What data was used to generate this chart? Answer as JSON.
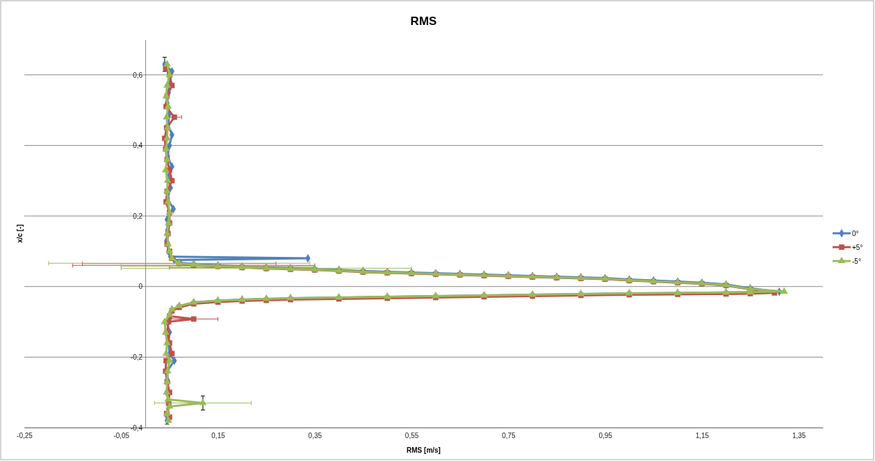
{
  "chart_data": {
    "type": "line",
    "title": "RMS",
    "xlabel": "RMS [m/s]",
    "ylabel": "x/c [-]",
    "xlim": [
      -0.25,
      1.4
    ],
    "ylim": [
      -0.4,
      0.7
    ],
    "xticks": [
      {
        "value": -0.25,
        "label": "-0,25"
      },
      {
        "value": -0.05,
        "label": "-0,05"
      },
      {
        "value": 0.15,
        "label": "0,15"
      },
      {
        "value": 0.35,
        "label": "0,35"
      },
      {
        "value": 0.55,
        "label": "0,55"
      },
      {
        "value": 0.75,
        "label": "0,75"
      },
      {
        "value": 0.95,
        "label": "0,95"
      },
      {
        "value": 1.15,
        "label": "1,15"
      },
      {
        "value": 1.35,
        "label": "1,35"
      }
    ],
    "yticks": [
      {
        "value": -0.4,
        "label": "-0,4"
      },
      {
        "value": -0.2,
        "label": "-0,2"
      },
      0,
      {
        "value": 0.2,
        "label": "0,2"
      },
      {
        "value": 0.4,
        "label": "0,4"
      },
      {
        "value": 0.6,
        "label": "0,6"
      }
    ],
    "grid": "y",
    "legend": "right",
    "series": [
      {
        "name": "0°",
        "color": "#4f81bd",
        "marker": "diamond",
        "x": [
          0.04,
          0.055,
          0.05,
          0.048,
          0.045,
          0.05,
          0.047,
          0.055,
          0.05,
          0.046,
          0.055,
          0.047,
          0.052,
          0.046,
          0.058,
          0.045,
          0.046,
          0.044,
          0.048,
          0.052,
          0.336,
          0.06,
          0.07,
          0.1,
          0.15,
          0.2,
          0.25,
          0.3,
          0.35,
          0.4,
          0.45,
          0.5,
          0.55,
          0.6,
          0.65,
          0.7,
          0.75,
          0.8,
          0.85,
          0.9,
          0.95,
          1.0,
          1.05,
          1.1,
          1.15,
          1.2,
          1.25,
          1.31,
          1.25,
          1.2,
          1.1,
          1.0,
          0.9,
          0.8,
          0.7,
          0.6,
          0.5,
          0.4,
          0.3,
          0.25,
          0.2,
          0.15,
          0.1,
          0.07,
          0.055,
          0.05,
          0.045,
          0.05,
          0.048,
          0.05,
          0.06,
          0.045,
          0.047,
          0.044,
          0.05,
          0.046,
          0.045
        ],
        "values": [
          0.63,
          0.61,
          0.58,
          0.55,
          0.52,
          0.49,
          0.46,
          0.43,
          0.4,
          0.37,
          0.34,
          0.31,
          0.28,
          0.25,
          0.22,
          0.19,
          0.16,
          0.13,
          0.1,
          0.085,
          0.08,
          0.075,
          0.068,
          0.064,
          0.06,
          0.057,
          0.054,
          0.052,
          0.05,
          0.047,
          0.044,
          0.042,
          0.04,
          0.038,
          0.036,
          0.034,
          0.032,
          0.03,
          0.028,
          0.026,
          0.024,
          0.02,
          0.017,
          0.014,
          0.011,
          0.006,
          -0.005,
          -0.015,
          -0.016,
          -0.017,
          -0.018,
          -0.019,
          -0.021,
          -0.023,
          -0.025,
          -0.027,
          -0.029,
          -0.031,
          -0.033,
          -0.035,
          -0.037,
          -0.04,
          -0.045,
          -0.055,
          -0.065,
          -0.08,
          -0.1,
          -0.13,
          -0.16,
          -0.19,
          -0.21,
          -0.24,
          -0.27,
          -0.3,
          -0.33,
          -0.36,
          -0.38
        ],
        "errors": [
          0.02,
          null,
          null,
          null,
          null,
          null,
          null,
          null,
          null,
          null,
          null,
          null,
          null,
          null,
          null,
          null,
          null,
          null,
          null,
          null,
          null,
          null,
          null,
          null,
          null,
          null,
          null,
          null,
          null,
          null,
          null,
          null,
          null,
          null,
          null,
          null,
          null,
          null,
          null,
          null,
          null,
          null,
          null,
          null,
          null,
          null,
          null,
          null,
          null,
          null,
          null,
          null,
          null,
          null,
          null,
          null,
          null,
          null,
          null,
          null,
          null,
          null,
          null,
          null,
          null,
          null,
          null,
          null,
          null,
          null,
          null,
          null,
          null,
          null,
          null,
          null,
          0.01
        ]
      },
      {
        "name": "+5°",
        "color": "#c0504d",
        "marker": "square",
        "x": [
          0.042,
          0.05,
          0.055,
          0.045,
          0.043,
          0.06,
          0.044,
          0.04,
          0.042,
          0.045,
          0.05,
          0.055,
          0.045,
          0.043,
          0.05,
          0.05,
          0.047,
          0.045,
          0.05,
          0.055,
          0.07,
          0.1,
          0.15,
          0.2,
          0.25,
          0.3,
          0.35,
          0.4,
          0.45,
          0.5,
          0.55,
          0.6,
          0.65,
          0.7,
          0.75,
          0.8,
          0.85,
          0.9,
          0.95,
          1.0,
          1.05,
          1.1,
          1.15,
          1.2,
          1.25,
          1.3,
          1.25,
          1.2,
          1.1,
          1.0,
          0.9,
          0.8,
          0.7,
          0.6,
          0.5,
          0.4,
          0.3,
          0.25,
          0.2,
          0.15,
          0.1,
          0.07,
          0.055,
          0.05,
          0.1,
          0.048,
          0.045,
          0.05,
          0.055,
          0.043,
          0.042,
          0.045,
          0.05,
          0.048,
          0.044,
          0.05
        ],
        "values": [
          0.62,
          0.6,
          0.57,
          0.54,
          0.51,
          0.48,
          0.45,
          0.42,
          0.39,
          0.36,
          0.33,
          0.3,
          0.27,
          0.24,
          0.21,
          0.18,
          0.15,
          0.12,
          0.1,
          0.08,
          0.065,
          0.06,
          0.057,
          0.054,
          0.051,
          0.049,
          0.047,
          0.044,
          0.041,
          0.039,
          0.037,
          0.035,
          0.033,
          0.031,
          0.029,
          0.027,
          0.025,
          0.023,
          0.021,
          0.017,
          0.014,
          0.011,
          0.008,
          0.003,
          -0.008,
          -0.018,
          -0.02,
          -0.021,
          -0.022,
          -0.023,
          -0.025,
          -0.027,
          -0.029,
          -0.031,
          -0.033,
          -0.035,
          -0.037,
          -0.039,
          -0.041,
          -0.044,
          -0.049,
          -0.059,
          -0.069,
          -0.084,
          -0.092,
          -0.1,
          -0.13,
          -0.16,
          -0.19,
          -0.21,
          -0.24,
          -0.27,
          -0.3,
          -0.33,
          -0.36,
          -0.37
        ],
        "xerrors": [
          null,
          null,
          null,
          null,
          null,
          0.015,
          null,
          null,
          null,
          null,
          null,
          null,
          null,
          null,
          null,
          null,
          null,
          null,
          null,
          null,
          0.2,
          0.25,
          null,
          0.15,
          null,
          null,
          null,
          null,
          null,
          null,
          null,
          null,
          null,
          null,
          null,
          null,
          null,
          null,
          null,
          null,
          null,
          null,
          null,
          null,
          null,
          null,
          null,
          null,
          null,
          null,
          null,
          null,
          null,
          null,
          null,
          null,
          null,
          null,
          null,
          null,
          null,
          null,
          null,
          null,
          0.05,
          null,
          null,
          null,
          null,
          null,
          null,
          null,
          null,
          null,
          null,
          null
        ]
      },
      {
        "name": "-5°",
        "color": "#9bbb59",
        "marker": "triangle",
        "x": [
          0.045,
          0.05,
          0.045,
          0.043,
          0.047,
          0.044,
          0.046,
          0.045,
          0.043,
          0.045,
          0.042,
          0.046,
          0.045,
          0.047,
          0.05,
          0.048,
          0.045,
          0.047,
          0.05,
          0.055,
          0.07,
          0.1,
          0.15,
          0.2,
          0.25,
          0.3,
          0.35,
          0.4,
          0.45,
          0.5,
          0.55,
          0.6,
          0.65,
          0.7,
          0.75,
          0.8,
          0.85,
          0.9,
          0.95,
          1.0,
          1.05,
          1.1,
          1.15,
          1.2,
          1.25,
          1.32,
          1.25,
          1.2,
          1.1,
          1.0,
          0.9,
          0.8,
          0.7,
          0.6,
          0.5,
          0.4,
          0.3,
          0.25,
          0.2,
          0.15,
          0.1,
          0.07,
          0.055,
          0.05,
          0.04,
          0.042,
          0.045,
          0.043,
          0.05,
          0.046,
          0.045,
          0.044,
          0.047,
          0.119,
          0.05,
          0.045,
          0.048
        ],
        "values": [
          0.63,
          0.6,
          0.57,
          0.54,
          0.51,
          0.48,
          0.45,
          0.42,
          0.39,
          0.36,
          0.33,
          0.3,
          0.27,
          0.24,
          0.21,
          0.18,
          0.15,
          0.12,
          0.1,
          0.08,
          0.066,
          0.062,
          0.058,
          0.055,
          0.052,
          0.05,
          0.048,
          0.045,
          0.042,
          0.04,
          0.038,
          0.036,
          0.034,
          0.032,
          0.03,
          0.028,
          0.026,
          0.024,
          0.022,
          0.018,
          0.015,
          0.012,
          0.009,
          0.004,
          -0.007,
          -0.014,
          -0.016,
          -0.017,
          -0.018,
          -0.019,
          -0.021,
          -0.023,
          -0.025,
          -0.027,
          -0.029,
          -0.031,
          -0.033,
          -0.035,
          -0.037,
          -0.04,
          -0.045,
          -0.055,
          -0.065,
          -0.08,
          -0.1,
          -0.13,
          -0.16,
          -0.19,
          -0.21,
          -0.24,
          -0.27,
          -0.3,
          -0.32,
          -0.33,
          -0.34,
          -0.36,
          -0.38
        ],
        "xerrors": [
          null,
          null,
          null,
          null,
          null,
          null,
          null,
          null,
          null,
          null,
          null,
          null,
          null,
          null,
          null,
          null,
          null,
          null,
          null,
          null,
          0.27,
          null,
          0.2,
          null,
          0.3,
          null,
          null,
          null,
          null,
          null,
          null,
          null,
          null,
          null,
          null,
          null,
          null,
          null,
          null,
          null,
          null,
          null,
          null,
          null,
          null,
          null,
          null,
          null,
          null,
          null,
          null,
          null,
          null,
          null,
          null,
          null,
          null,
          null,
          null,
          null,
          null,
          null,
          null,
          null,
          null,
          null,
          null,
          null,
          null,
          null,
          null,
          null,
          null,
          0.1,
          null,
          null,
          null
        ],
        "errors": [
          null,
          null,
          null,
          null,
          null,
          null,
          null,
          null,
          null,
          null,
          null,
          null,
          null,
          null,
          null,
          null,
          null,
          null,
          null,
          null,
          null,
          null,
          null,
          null,
          null,
          null,
          null,
          null,
          null,
          null,
          null,
          null,
          null,
          null,
          null,
          null,
          null,
          null,
          null,
          null,
          null,
          null,
          null,
          null,
          null,
          null,
          null,
          null,
          null,
          null,
          null,
          null,
          null,
          null,
          null,
          null,
          null,
          null,
          null,
          null,
          null,
          null,
          null,
          null,
          null,
          null,
          null,
          null,
          null,
          null,
          null,
          null,
          null,
          0.02,
          null,
          null,
          null
        ]
      }
    ]
  }
}
